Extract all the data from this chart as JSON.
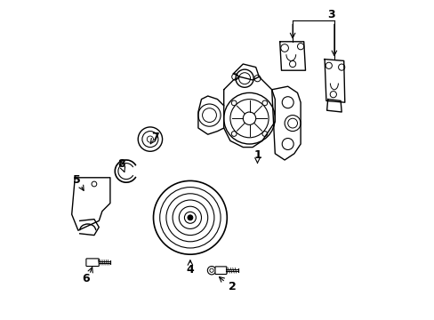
{
  "title": "",
  "background_color": "#ffffff",
  "line_color": "#000000",
  "line_width": 1.0,
  "figsize": [
    4.89,
    3.6
  ],
  "dpi": 100
}
